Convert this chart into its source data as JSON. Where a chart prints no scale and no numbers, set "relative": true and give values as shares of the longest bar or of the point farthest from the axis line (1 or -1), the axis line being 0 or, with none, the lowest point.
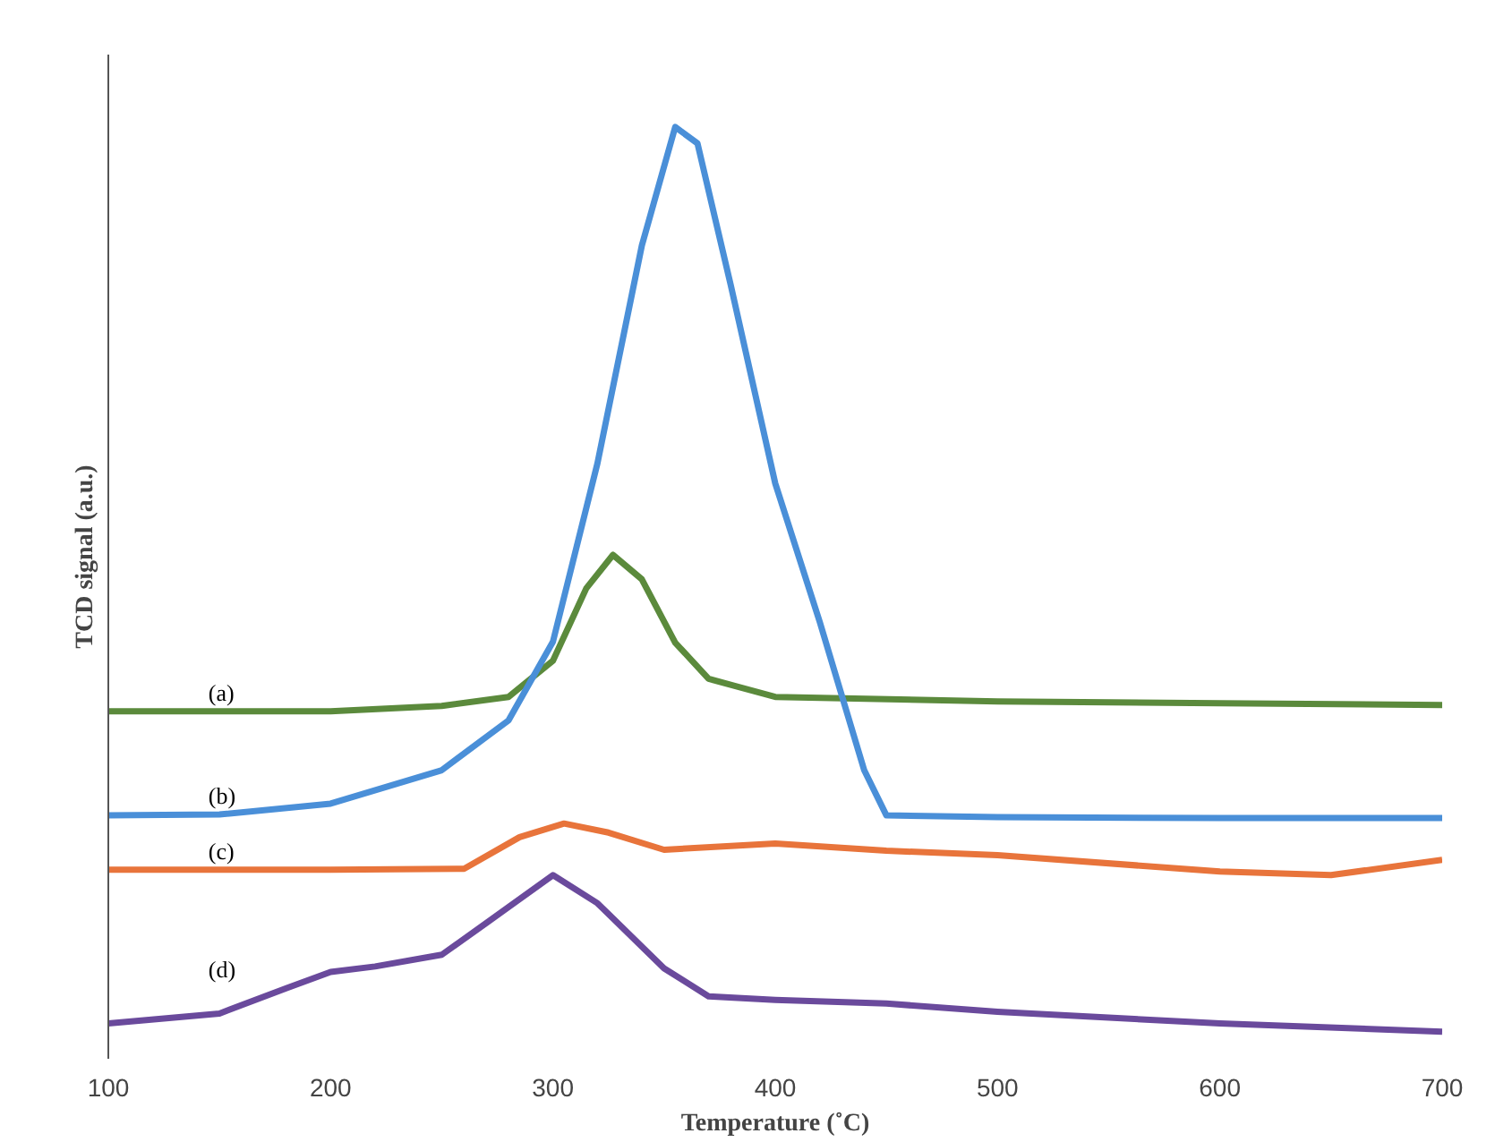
{
  "chart_data": {
    "type": "line",
    "relative": true,
    "xlabel": "Temperature (˚C)",
    "ylabel": "TCD signal (a.u.)",
    "xlim": [
      100,
      700
    ],
    "xticks": [
      100,
      200,
      300,
      400,
      500,
      600,
      700
    ],
    "grid": false,
    "marker": "none",
    "line_style": "solid",
    "series": [
      {
        "name": "(a)",
        "color": "#5b8a3c",
        "x": [
          100,
          200,
          250,
          280,
          300,
          315,
          327,
          340,
          355,
          370,
          400,
          500,
          600,
          700
        ],
        "values": [
          0.354,
          0.354,
          0.36,
          0.37,
          0.41,
          0.49,
          0.527,
          0.5,
          0.43,
          0.39,
          0.37,
          0.365,
          0.363,
          0.361
        ]
      },
      {
        "name": "(b)",
        "color": "#4a8fd8",
        "x": [
          100,
          150,
          200,
          250,
          280,
          300,
          320,
          340,
          355,
          365,
          380,
          400,
          420,
          440,
          450,
          500,
          600,
          700
        ],
        "values": [
          0.239,
          0.24,
          0.252,
          0.289,
          0.344,
          0.431,
          0.628,
          0.869,
          1.0,
          0.982,
          0.825,
          0.606,
          0.453,
          0.289,
          0.239,
          0.237,
          0.236,
          0.236
        ]
      },
      {
        "name": "(c)",
        "color": "#e8743b",
        "x": [
          100,
          200,
          260,
          285,
          305,
          325,
          350,
          400,
          450,
          500,
          600,
          650,
          700
        ],
        "values": [
          0.179,
          0.179,
          0.18,
          0.215,
          0.23,
          0.22,
          0.201,
          0.208,
          0.2,
          0.195,
          0.177,
          0.173,
          0.19
        ]
      },
      {
        "name": "(d)",
        "color": "#6a4a9c",
        "x": [
          100,
          150,
          180,
          200,
          220,
          250,
          270,
          300,
          320,
          350,
          370,
          400,
          450,
          500,
          600,
          700
        ],
        "values": [
          0.009,
          0.02,
          0.048,
          0.066,
          0.072,
          0.085,
          0.12,
          0.173,
          0.142,
          0.07,
          0.039,
          0.035,
          0.031,
          0.022,
          0.009,
          0.0
        ]
      }
    ]
  }
}
